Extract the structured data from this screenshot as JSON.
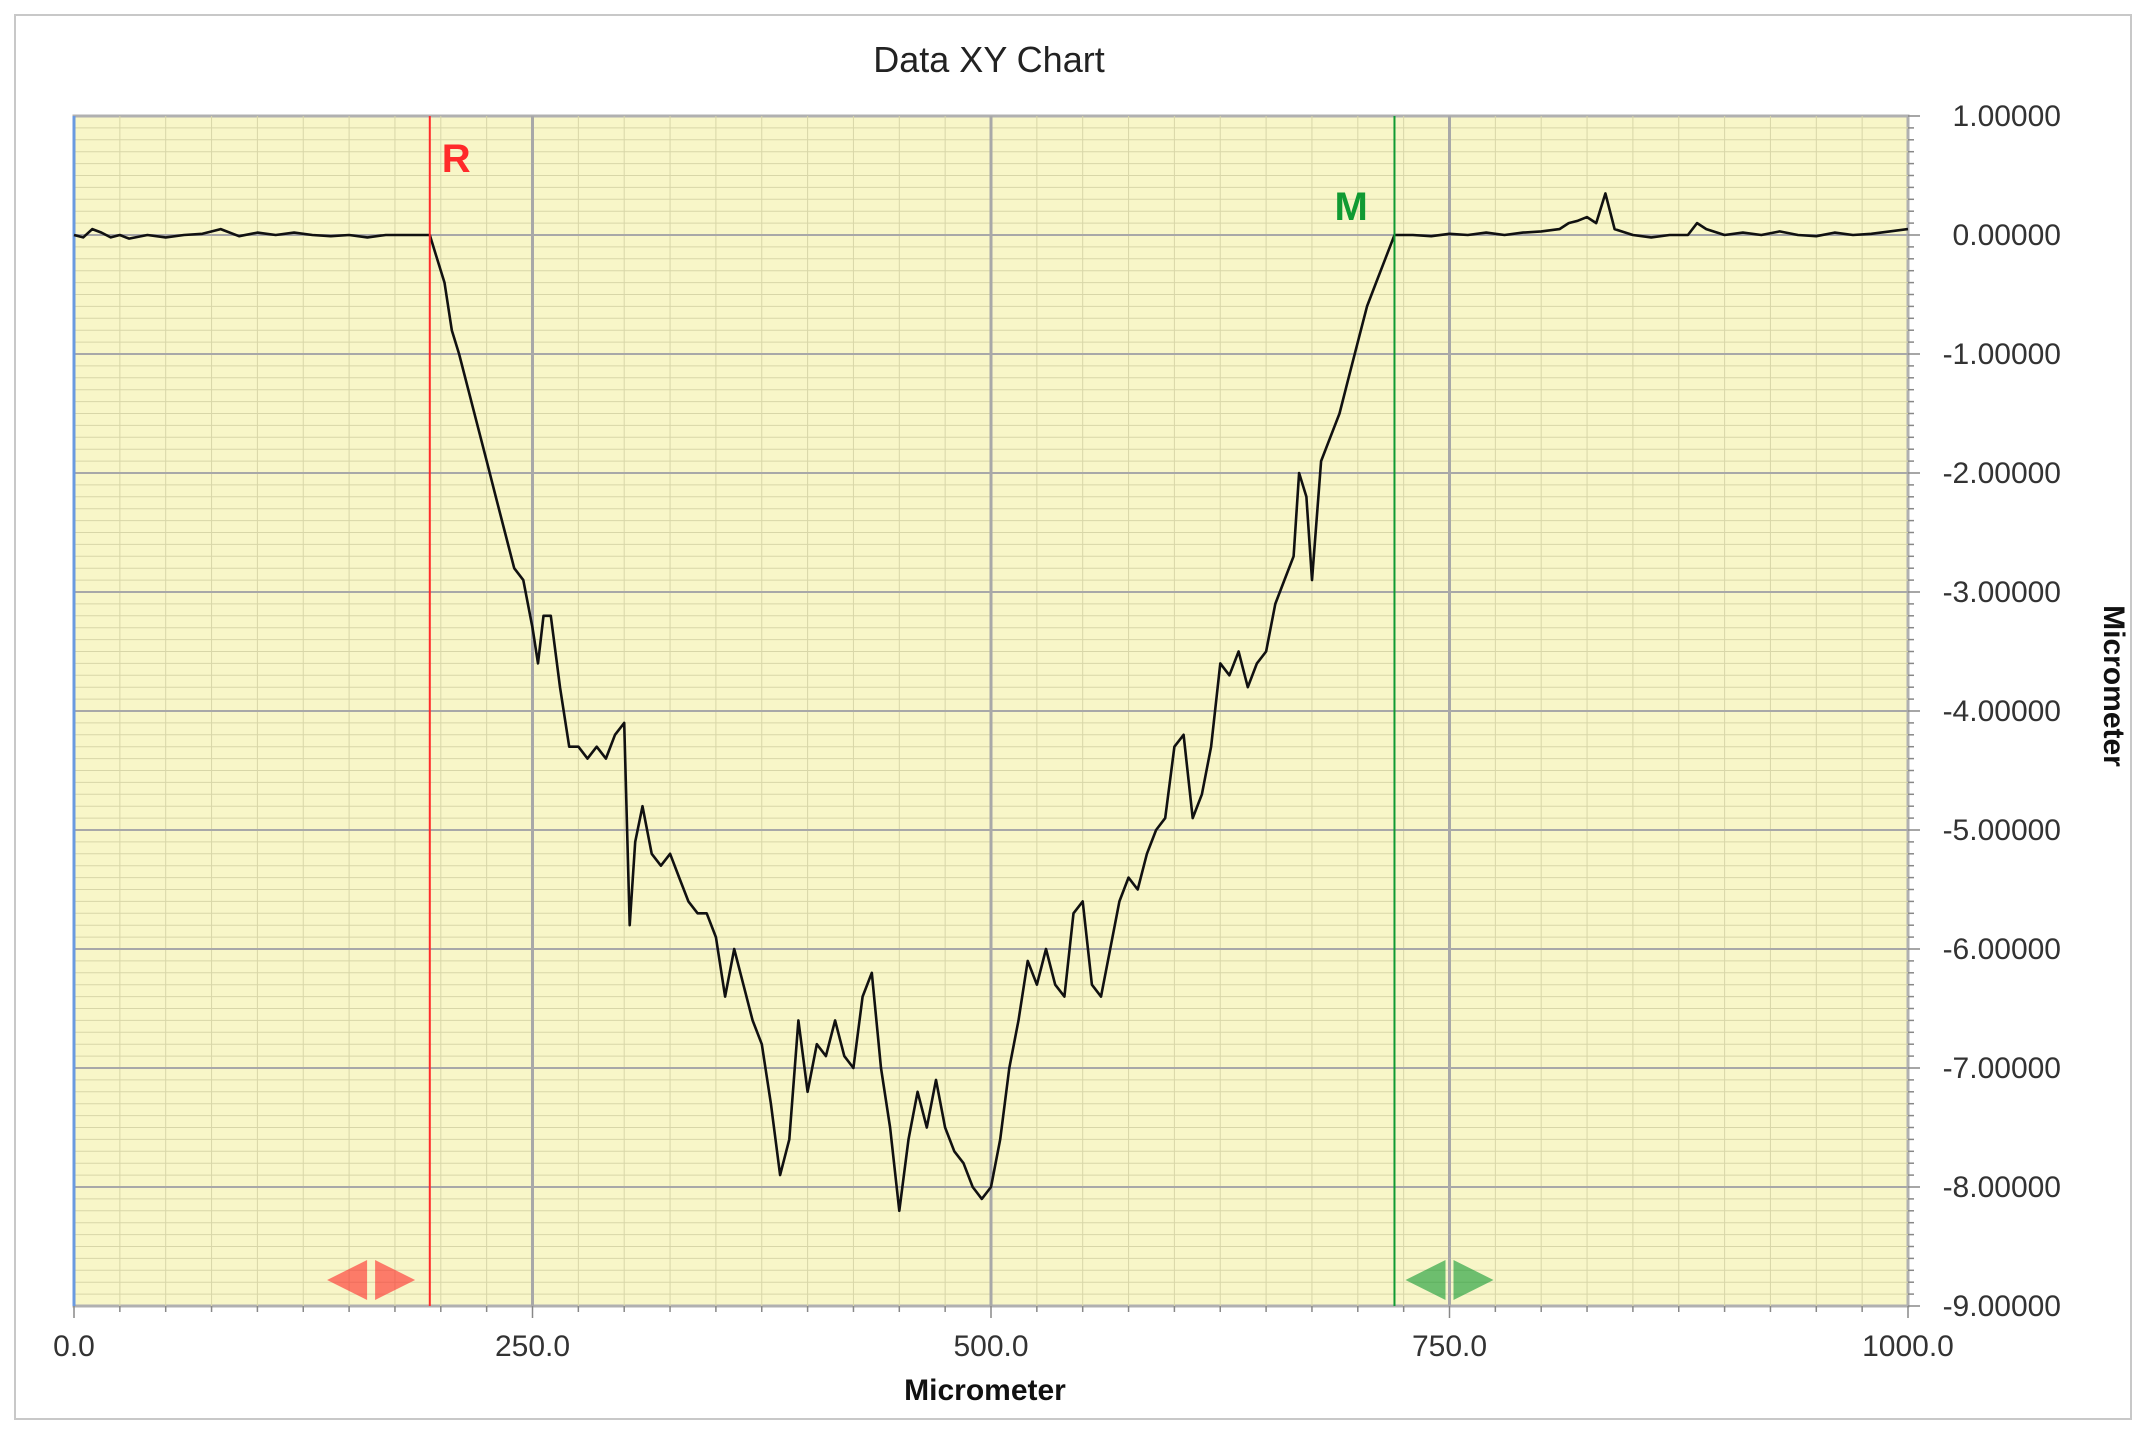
{
  "chart_data": {
    "type": "line",
    "title": "Data XY Chart",
    "xlabel": "Micrometer",
    "ylabel": "Micrometer",
    "xlim": [
      0,
      1000
    ],
    "ylim": [
      -9,
      1
    ],
    "x_ticks": [
      "0.0",
      "250.0",
      "500.0",
      "750.0",
      "1000.0"
    ],
    "x_tick_values": [
      0,
      250,
      500,
      750,
      1000
    ],
    "y_ticks": [
      "1.00000",
      "0.00000",
      "-1.00000",
      "-2.00000",
      "-3.00000",
      "-4.00000",
      "-5.00000",
      "-6.00000",
      "-7.00000",
      "-8.00000",
      "-9.00000"
    ],
    "y_tick_values": [
      1,
      0,
      -1,
      -2,
      -3,
      -4,
      -5,
      -6,
      -7,
      -8,
      -9
    ],
    "grid": true,
    "legend": "none",
    "colors": {
      "plot_background": "#f8f6c8",
      "grid_major": "#a8a8a8",
      "grid_minor": "#d8d6a8",
      "series": "#111111",
      "marker_r": "#ff2a2a",
      "marker_m": "#119a33",
      "left_axis": "#6a9ae0"
    },
    "markers": [
      {
        "label": "R",
        "x": 194,
        "color": "#ff2a2a",
        "handle_x": 162
      },
      {
        "label": "M",
        "x": 720,
        "color": "#119a33",
        "handle_x": 750
      }
    ],
    "series": [
      {
        "x": [
          0,
          5,
          10,
          15,
          20,
          25,
          30,
          40,
          50,
          60,
          70,
          80,
          90,
          100,
          110,
          120,
          130,
          140,
          150,
          160,
          170,
          180,
          190,
          194,
          198,
          202,
          206,
          210,
          215,
          220,
          225,
          230,
          235,
          240,
          245,
          250,
          253,
          256,
          260,
          265,
          270,
          275,
          280,
          285,
          290,
          295,
          300,
          303,
          306,
          310,
          315,
          320,
          325,
          330,
          335,
          340,
          345,
          350,
          355,
          360,
          365,
          370,
          375,
          380,
          385,
          390,
          395,
          400,
          405,
          410,
          415,
          420,
          425,
          430,
          435,
          440,
          445,
          450,
          455,
          460,
          465,
          470,
          475,
          480,
          485,
          490,
          495,
          500,
          505,
          510,
          515,
          520,
          525,
          530,
          535,
          540,
          545,
          550,
          555,
          560,
          565,
          570,
          575,
          580,
          585,
          590,
          595,
          600,
          605,
          610,
          615,
          620,
          625,
          630,
          635,
          640,
          645,
          650,
          655,
          660,
          665,
          668,
          672,
          675,
          680,
          685,
          690,
          695,
          700,
          705,
          710,
          715,
          720,
          730,
          740,
          750,
          760,
          770,
          780,
          790,
          800,
          810,
          815,
          820,
          825,
          830,
          835,
          840,
          850,
          860,
          870,
          880,
          885,
          890,
          900,
          910,
          920,
          930,
          940,
          950,
          960,
          970,
          980,
          990,
          1000
        ],
        "y": [
          0,
          -0.02,
          0.05,
          0.02,
          -0.02,
          0,
          -0.03,
          0,
          -0.02,
          0,
          0.01,
          0.05,
          -0.01,
          0.02,
          0,
          0.02,
          0,
          -0.01,
          0,
          -0.02,
          0,
          0,
          0,
          0,
          -0.2,
          -0.4,
          -0.8,
          -1.0,
          -1.3,
          -1.6,
          -1.9,
          -2.2,
          -2.5,
          -2.8,
          -2.9,
          -3.3,
          -3.6,
          -3.2,
          -3.2,
          -3.8,
          -4.3,
          -4.3,
          -4.4,
          -4.3,
          -4.4,
          -4.2,
          -4.1,
          -5.8,
          -5.1,
          -4.8,
          -5.2,
          -5.3,
          -5.2,
          -5.4,
          -5.6,
          -5.7,
          -5.7,
          -5.9,
          -6.4,
          -6.0,
          -6.3,
          -6.6,
          -6.8,
          -7.3,
          -7.9,
          -7.6,
          -6.6,
          -7.2,
          -6.8,
          -6.9,
          -6.6,
          -6.9,
          -7.0,
          -6.4,
          -6.2,
          -7.0,
          -7.5,
          -8.2,
          -7.6,
          -7.2,
          -7.5,
          -7.1,
          -7.5,
          -7.7,
          -7.8,
          -8.0,
          -8.1,
          -8.0,
          -7.6,
          -7.0,
          -6.6,
          -6.1,
          -6.3,
          -6.0,
          -6.3,
          -6.4,
          -5.7,
          -5.6,
          -6.3,
          -6.4,
          -6.0,
          -5.6,
          -5.4,
          -5.5,
          -5.2,
          -5.0,
          -4.9,
          -4.3,
          -4.2,
          -4.9,
          -4.7,
          -4.3,
          -3.6,
          -3.7,
          -3.5,
          -3.8,
          -3.6,
          -3.5,
          -3.1,
          -2.9,
          -2.7,
          -2.0,
          -2.2,
          -2.9,
          -1.9,
          -1.7,
          -1.5,
          -1.2,
          -0.9,
          -0.6,
          -0.4,
          -0.2,
          0,
          0,
          -0.01,
          0.01,
          0,
          0.02,
          0,
          0.02,
          0.03,
          0.05,
          0.1,
          0.12,
          0.15,
          0.1,
          0.35,
          0.05,
          0,
          -0.02,
          0,
          0,
          0.1,
          0.05,
          0,
          0.02,
          0,
          0.03,
          0,
          -0.01,
          0.02,
          0,
          0.01,
          0.03,
          0.05
        ]
      }
    ]
  }
}
